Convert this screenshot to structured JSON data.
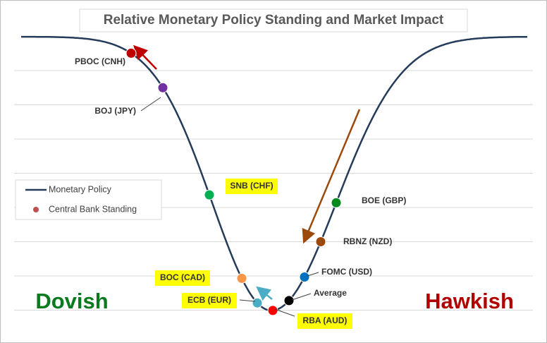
{
  "title": "Relative Monetary Policy Standing and Market Impact",
  "legend": {
    "line": "Monetary Policy",
    "dot": "Central Bank Standing"
  },
  "banks": {
    "pboc": "PBOC (CNH)",
    "boj": "BOJ (JPY)",
    "snb": "SNB (CHF)",
    "boc": "BOC (CAD)",
    "ecb": "ECB (EUR)",
    "rba": "RBA (AUD)",
    "average": "Average",
    "fomc": "FOMC (USD)",
    "rbnz": "RBNZ (NZD)",
    "boe": "BOE (GBP)"
  },
  "sides": {
    "left": "Dovish",
    "right": "Hawkish"
  }
}
